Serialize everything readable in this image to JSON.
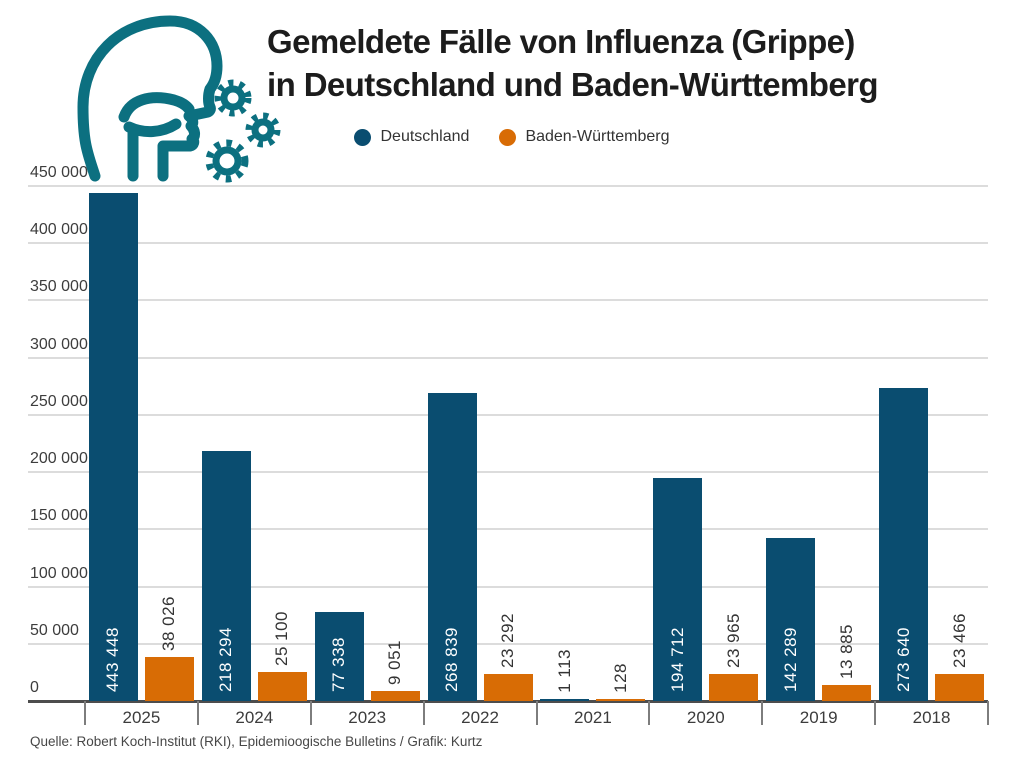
{
  "header": {
    "title_line1": "Gemeldete Fälle von Influenza (Grippe)",
    "title_line2": "in Deutschland und Baden-Württemberg"
  },
  "legend": {
    "items": [
      {
        "label": "Deutschland",
        "color": "#0A4D70"
      },
      {
        "label": "Baden-Württemberg",
        "color": "#D86C05"
      }
    ]
  },
  "footer": {
    "source": "Quelle: Robert Koch-Institut (RKI), Epidemioogische Bulletins / Grafik: Kurtz"
  },
  "icon": {
    "name": "coughing-head-with-germs",
    "color": "#0C7080"
  },
  "colors": {
    "deutschland_blue": "#0A4D70",
    "baden_wuerttemberg_orange": "#D86C05",
    "icon_teal": "#0C7080",
    "gridline": "#DCDCDC",
    "axis": "#4D4D4D",
    "tick": "#7D7D7D",
    "value_label_dark": "#333333",
    "value_label_light": "#FFFFFF",
    "title_text": "#1C1C1C"
  },
  "chart_data": {
    "type": "bar",
    "title": "Gemeldete Fälle von Influenza (Grippe) in Deutschland und Baden-Württemberg",
    "categories": [
      "2025",
      "2024",
      "2023",
      "2022",
      "2021",
      "2020",
      "2019",
      "2018"
    ],
    "series": [
      {
        "name": "Deutschland",
        "color": "#0A4D70",
        "values": [
          443448,
          218294,
          77338,
          268839,
          1113,
          194712,
          142289,
          273640
        ],
        "value_labels": [
          "443 448",
          "218 294",
          "77 338",
          "268 839",
          "1 113",
          "194 712",
          "142 289",
          "273 640"
        ]
      },
      {
        "name": "Baden-Württemberg",
        "color": "#D86C05",
        "values": [
          38026,
          25100,
          9051,
          23292,
          128,
          23965,
          13885,
          23466
        ],
        "value_labels": [
          "38 026",
          "25 100",
          "9 051",
          "23 292",
          "128",
          "23 965",
          "13 885",
          "23 466"
        ]
      }
    ],
    "xlabel": "",
    "ylabel": "",
    "ylim": [
      0,
      450000
    ],
    "ytick_step": 50000,
    "ytick_labels": [
      "0",
      "50 000",
      "100 000",
      "150 000",
      "200 000",
      "250 000",
      "300 000",
      "350 000",
      "400 000",
      "450 000"
    ],
    "grid": true,
    "legend_position": "top",
    "value_label_style": "rotated-90-at-bar-base",
    "number_format": "space-thousands"
  }
}
